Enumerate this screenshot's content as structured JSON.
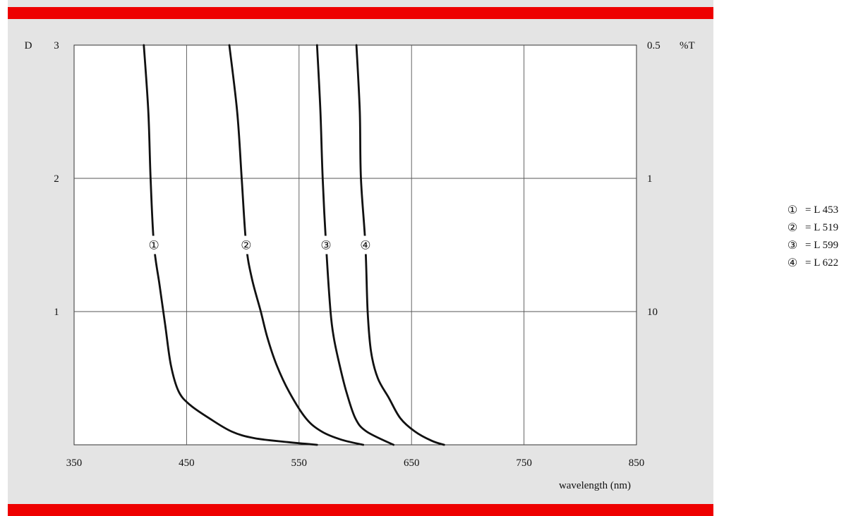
{
  "chart_data": {
    "type": "line",
    "xlabel": "wavelength (nm)",
    "ylabel_left": "D",
    "ylabel_right": "%T",
    "xlim": [
      350,
      850
    ],
    "ylim": [
      0,
      3
    ],
    "x_ticks": [
      350,
      450,
      550,
      650,
      750,
      850
    ],
    "y_ticks_left": [
      1,
      2,
      3
    ],
    "y_ticks_right": [
      {
        "d": 3,
        "label": "0.5"
      },
      {
        "d": 2,
        "label": "1"
      },
      {
        "d": 1,
        "label": "10"
      }
    ],
    "grid": true,
    "series": [
      {
        "name": "①",
        "label_d": 1.5,
        "points": [
          [
            412,
            3.0
          ],
          [
            416,
            2.5
          ],
          [
            418,
            2.0
          ],
          [
            421,
            1.5
          ],
          [
            426,
            1.2
          ],
          [
            431,
            0.9
          ],
          [
            436,
            0.6
          ],
          [
            443,
            0.4
          ],
          [
            453,
            0.3
          ],
          [
            470,
            0.2
          ],
          [
            490,
            0.1
          ],
          [
            510,
            0.05
          ],
          [
            540,
            0.02
          ],
          [
            566,
            0.0
          ]
        ]
      },
      {
        "name": "②",
        "label_d": 1.5,
        "points": [
          [
            488,
            3.0
          ],
          [
            495,
            2.5
          ],
          [
            499,
            2.0
          ],
          [
            503,
            1.5
          ],
          [
            508,
            1.25
          ],
          [
            516,
            1.0
          ],
          [
            522,
            0.8
          ],
          [
            530,
            0.6
          ],
          [
            541,
            0.4
          ],
          [
            556,
            0.2
          ],
          [
            570,
            0.1
          ],
          [
            587,
            0.04
          ],
          [
            607,
            0.0
          ]
        ]
      },
      {
        "name": "③",
        "label_d": 1.5,
        "points": [
          [
            566,
            3.0
          ],
          [
            569,
            2.5
          ],
          [
            571,
            2.0
          ],
          [
            574,
            1.5
          ],
          [
            578,
            1.0
          ],
          [
            581,
            0.8
          ],
          [
            586,
            0.6
          ],
          [
            592,
            0.4
          ],
          [
            600,
            0.2
          ],
          [
            610,
            0.1
          ],
          [
            634,
            0.0
          ]
        ]
      },
      {
        "name": "④",
        "label_d": 1.5,
        "points": [
          [
            601,
            3.0
          ],
          [
            604,
            2.5
          ],
          [
            605,
            2.0
          ],
          [
            609,
            1.5
          ],
          [
            611,
            1.0
          ],
          [
            614,
            0.7
          ],
          [
            620,
            0.5
          ],
          [
            630,
            0.35
          ],
          [
            640,
            0.2
          ],
          [
            653,
            0.1
          ],
          [
            668,
            0.03
          ],
          [
            679,
            0.0
          ]
        ]
      }
    ]
  },
  "legend": [
    {
      "mark": "①",
      "text": "= L 453"
    },
    {
      "mark": "②",
      "text": "= L 519"
    },
    {
      "mark": "③",
      "text": "= L 599"
    },
    {
      "mark": "④",
      "text": "= L 622"
    }
  ]
}
